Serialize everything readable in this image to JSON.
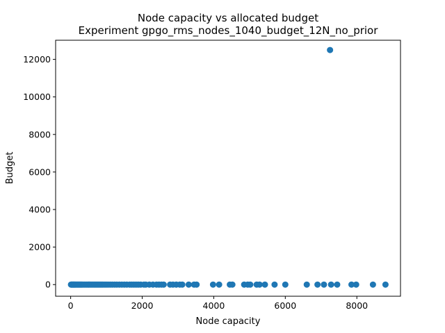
{
  "chart_data": {
    "type": "scatter",
    "title": "Node capacity vs allocated budget",
    "subtitle": "Experiment gpgo_rms_nodes_1040_budget_12N_no_prior",
    "xlabel": "Node capacity",
    "ylabel": "Budget",
    "xlim": [
      -420,
      9220
    ],
    "ylim": [
      -620,
      13020
    ],
    "xticks": [
      0,
      2000,
      4000,
      6000,
      8000
    ],
    "yticks": [
      0,
      2000,
      4000,
      6000,
      8000,
      10000,
      12000
    ],
    "xtick_labels": [
      "0",
      "2000",
      "4000",
      "6000",
      "8000"
    ],
    "ytick_labels": [
      "0",
      "2000",
      "4000",
      "6000",
      "8000",
      "10000",
      "12000"
    ],
    "grid": false,
    "color": "#1f77b4",
    "series": [
      {
        "x": [
          10,
          25,
          40,
          55,
          70,
          85,
          100,
          115,
          130,
          150,
          170,
          190,
          210,
          230,
          250,
          270,
          290,
          310,
          330,
          360,
          390,
          420,
          450,
          480,
          510,
          540,
          570,
          600,
          630,
          660,
          690,
          720,
          750,
          780,
          810,
          840,
          870,
          900,
          940,
          980,
          1020,
          1070,
          1120,
          1170,
          1230,
          1290,
          1360,
          1430,
          1500,
          1570,
          1650,
          1700,
          1750,
          1800,
          1850,
          1900,
          1960,
          2050,
          2100,
          2200,
          2300,
          2400,
          2470,
          2540,
          2600,
          2780,
          2860,
          2950,
          3050,
          3120,
          3300,
          3450,
          3520,
          3980,
          4150,
          4450,
          4520,
          4850,
          4950,
          5020,
          5200,
          5280,
          5430,
          5700,
          6000,
          6600,
          6900,
          7080,
          7280,
          7450,
          7850,
          7980,
          8450,
          8800,
          7250
        ],
        "y": [
          0,
          0,
          0,
          0,
          0,
          0,
          0,
          0,
          0,
          0,
          0,
          0,
          0,
          0,
          0,
          0,
          0,
          0,
          0,
          0,
          0,
          0,
          0,
          0,
          0,
          0,
          0,
          0,
          0,
          0,
          0,
          0,
          0,
          0,
          0,
          0,
          0,
          0,
          0,
          0,
          0,
          0,
          0,
          0,
          0,
          0,
          0,
          0,
          0,
          0,
          0,
          0,
          0,
          0,
          0,
          0,
          0,
          0,
          0,
          0,
          0,
          0,
          0,
          0,
          0,
          0,
          0,
          0,
          0,
          0,
          0,
          0,
          0,
          0,
          0,
          0,
          0,
          0,
          0,
          0,
          0,
          0,
          0,
          0,
          0,
          0,
          0,
          0,
          0,
          0,
          0,
          0,
          0,
          0,
          12500
        ]
      }
    ]
  }
}
